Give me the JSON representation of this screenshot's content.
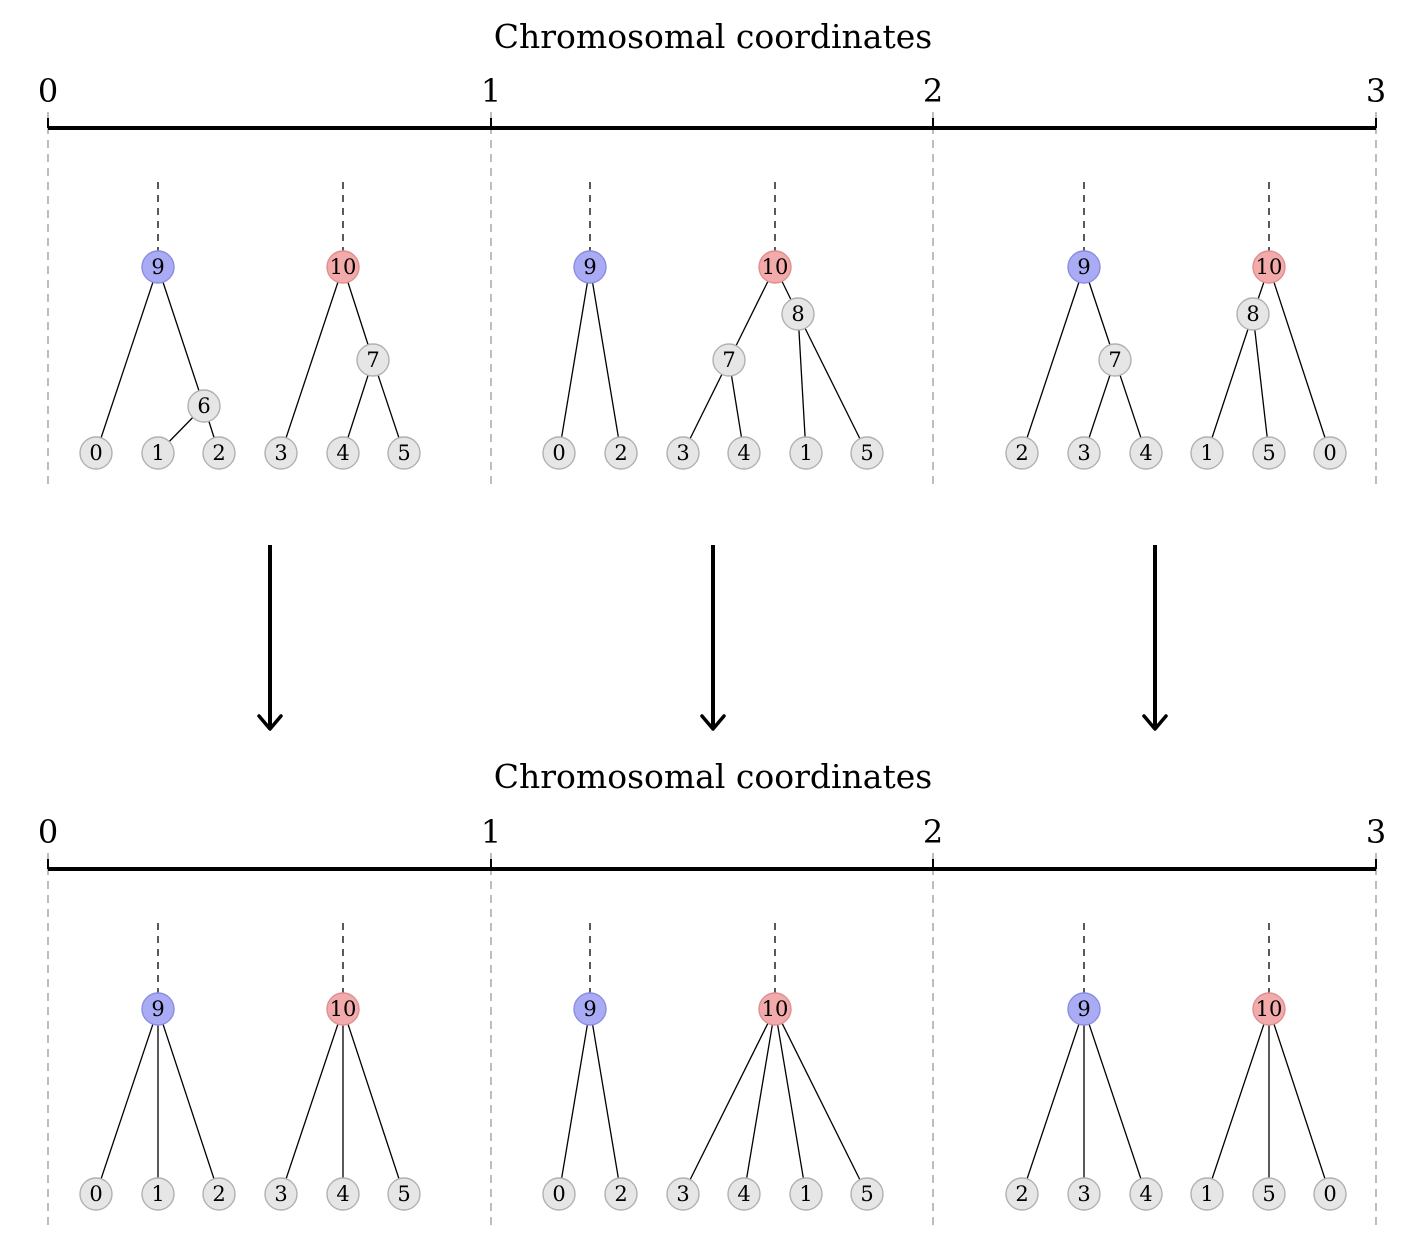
{
  "colors": {
    "leaf_fill": "#e6e6e6",
    "leaf_stroke": "#b0b0b0",
    "root9_fill": "#a9abf5",
    "root9_stroke": "#8a8de0",
    "root10_fill": "#f3aaaa",
    "root10_stroke": "#df8f8f",
    "axis": "#000000",
    "separator": "#9a9a9a",
    "edge": "#000000"
  },
  "panels": [
    {
      "id": "before",
      "axis_title": "Chromosomal coordinates",
      "ticks": [
        "0",
        "1",
        "2",
        "3"
      ],
      "intervals": [
        {
          "trees": [
            {
              "root": "9",
              "edges": [
                [
                  "9",
                  "0"
                ],
                [
                  "9",
                  "6"
                ],
                [
                  "6",
                  "1"
                ],
                [
                  "6",
                  "2"
                ]
              ]
            },
            {
              "root": "10",
              "edges": [
                [
                  "10",
                  "3"
                ],
                [
                  "10",
                  "7"
                ],
                [
                  "7",
                  "4"
                ],
                [
                  "7",
                  "5"
                ]
              ]
            }
          ],
          "leaves": [
            "0",
            "1",
            "2",
            "3",
            "4",
            "5"
          ]
        },
        {
          "trees": [
            {
              "root": "9",
              "edges": [
                [
                  "9",
                  "0"
                ],
                [
                  "9",
                  "2"
                ]
              ]
            },
            {
              "root": "10",
              "edges": [
                [
                  "10",
                  "7"
                ],
                [
                  "10",
                  "8"
                ],
                [
                  "7",
                  "3"
                ],
                [
                  "7",
                  "4"
                ],
                [
                  "8",
                  "1"
                ],
                [
                  "8",
                  "5"
                ]
              ]
            }
          ],
          "leaves": [
            "0",
            "2",
            "3",
            "4",
            "1",
            "5"
          ]
        },
        {
          "trees": [
            {
              "root": "9",
              "edges": [
                [
                  "9",
                  "2"
                ],
                [
                  "9",
                  "7"
                ],
                [
                  "7",
                  "3"
                ],
                [
                  "7",
                  "4"
                ]
              ]
            },
            {
              "root": "10",
              "edges": [
                [
                  "10",
                  "8"
                ],
                [
                  "10",
                  "0"
                ],
                [
                  "8",
                  "1"
                ],
                [
                  "8",
                  "5"
                ]
              ]
            }
          ],
          "leaves": [
            "2",
            "3",
            "4",
            "1",
            "5",
            "0"
          ]
        }
      ]
    },
    {
      "id": "after",
      "axis_title": "Chromosomal coordinates",
      "ticks": [
        "0",
        "1",
        "2",
        "3"
      ],
      "intervals": [
        {
          "trees": [
            {
              "root": "9",
              "edges": [
                [
                  "9",
                  "0"
                ],
                [
                  "9",
                  "1"
                ],
                [
                  "9",
                  "2"
                ]
              ]
            },
            {
              "root": "10",
              "edges": [
                [
                  "10",
                  "3"
                ],
                [
                  "10",
                  "4"
                ],
                [
                  "10",
                  "5"
                ]
              ]
            }
          ],
          "leaves": [
            "0",
            "1",
            "2",
            "3",
            "4",
            "5"
          ]
        },
        {
          "trees": [
            {
              "root": "9",
              "edges": [
                [
                  "9",
                  "0"
                ],
                [
                  "9",
                  "2"
                ]
              ]
            },
            {
              "root": "10",
              "edges": [
                [
                  "10",
                  "3"
                ],
                [
                  "10",
                  "4"
                ],
                [
                  "10",
                  "1"
                ],
                [
                  "10",
                  "5"
                ]
              ]
            }
          ],
          "leaves": [
            "0",
            "2",
            "3",
            "4",
            "1",
            "5"
          ]
        },
        {
          "trees": [
            {
              "root": "9",
              "edges": [
                [
                  "9",
                  "2"
                ],
                [
                  "9",
                  "3"
                ],
                [
                  "9",
                  "4"
                ]
              ]
            },
            {
              "root": "10",
              "edges": [
                [
                  "10",
                  "1"
                ],
                [
                  "10",
                  "5"
                ],
                [
                  "10",
                  "0"
                ]
              ]
            }
          ],
          "leaves": [
            "2",
            "3",
            "4",
            "1",
            "5",
            "0"
          ]
        }
      ]
    }
  ]
}
